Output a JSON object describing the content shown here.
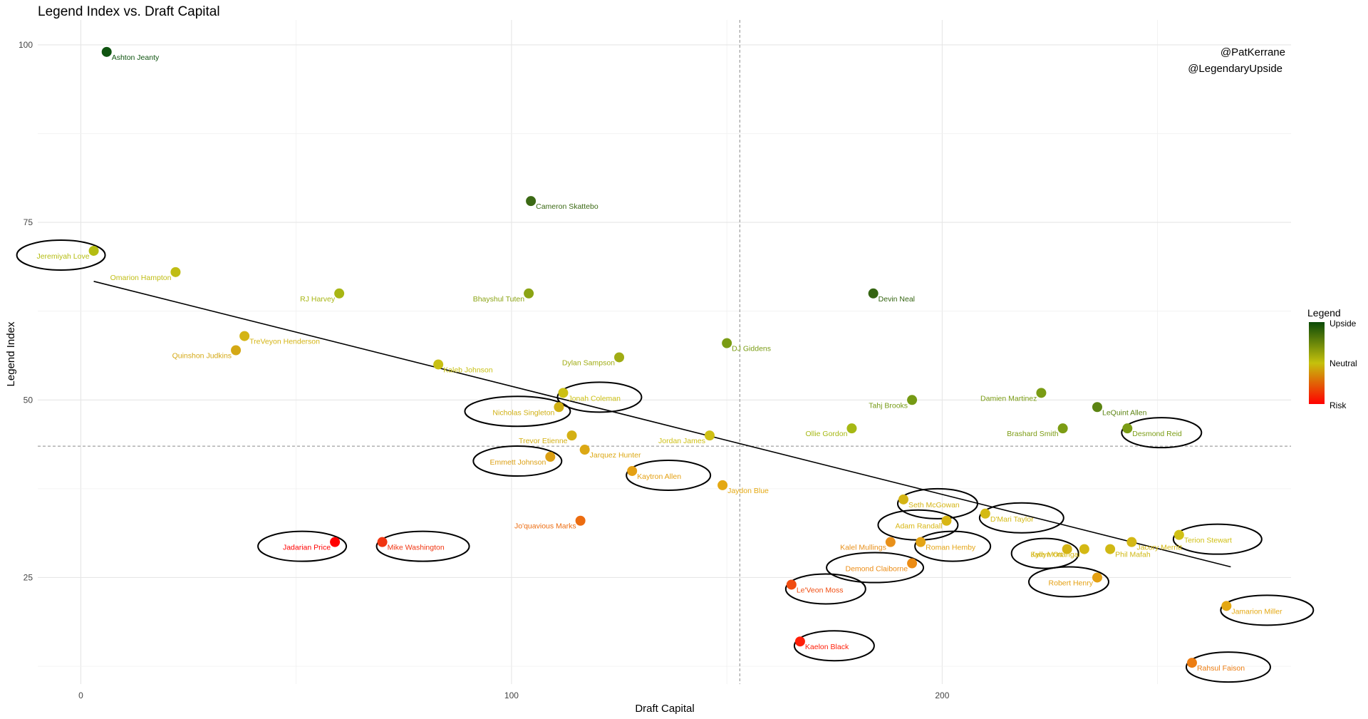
{
  "chart_data": {
    "type": "scatter",
    "title": "Legend Index vs. Draft Capital",
    "xlabel": "Draft Capital",
    "ylabel": "Legend Index",
    "xlim": [
      -10,
      281
    ],
    "ylim": [
      10,
      103.5
    ],
    "xticks": [
      0,
      100,
      200
    ],
    "yticks": [
      25,
      50,
      75,
      100
    ],
    "grid": true,
    "vline_x": 153,
    "hline_y": 43.5,
    "trend_line": {
      "x": [
        3,
        267
      ],
      "y": [
        66.7,
        26.5
      ]
    },
    "credits": [
      "@PatKerrane",
      "@LegendaryUpside"
    ],
    "legend": {
      "title": "Legend",
      "placement": "right",
      "labels": [
        "Upside",
        "Neutral",
        "Risk"
      ],
      "colors": [
        "#0b4a08",
        "#c5c10c",
        "#ff0000"
      ]
    },
    "points": [
      {
        "name": "Ashton Jeanty",
        "x": 6,
        "y": 99,
        "color": "#0f5410",
        "label_side": "right"
      },
      {
        "name": "Cameron Skattebo",
        "x": 104.5,
        "y": 78,
        "color": "#3b6914",
        "label_side": "right"
      },
      {
        "name": "Jeremiyah Love",
        "x": 3,
        "y": 71,
        "color": "#b5bd12",
        "label_side": "left",
        "circled": true
      },
      {
        "name": "Omarion Hampton",
        "x": 22,
        "y": 68,
        "color": "#c0bd14",
        "label_side": "left"
      },
      {
        "name": "RJ Harvey",
        "x": 60,
        "y": 65,
        "color": "#a8b614",
        "label_side": "left"
      },
      {
        "name": "Bhayshul Tuten",
        "x": 104,
        "y": 65,
        "color": "#8ba414",
        "label_side": "left"
      },
      {
        "name": "Devin Neal",
        "x": 184,
        "y": 65,
        "color": "#356512",
        "label_side": "right"
      },
      {
        "name": "TreVeyon Henderson",
        "x": 38,
        "y": 59,
        "color": "#d4b414",
        "label_side": "right"
      },
      {
        "name": "DJ Giddens",
        "x": 150,
        "y": 58,
        "color": "#7a9c14",
        "label_side": "right"
      },
      {
        "name": "Quinshon Judkins",
        "x": 36,
        "y": 57,
        "color": "#d4a814",
        "label_side": "left"
      },
      {
        "name": "Dylan Sampson",
        "x": 125,
        "y": 56,
        "color": "#a0ac14",
        "label_side": "left"
      },
      {
        "name": "Kaleb Johnson",
        "x": 83,
        "y": 55,
        "color": "#c8c014",
        "label_side": "right"
      },
      {
        "name": "Damien Martinez",
        "x": 223,
        "y": 51,
        "color": "#7a9c14",
        "label_side": "left"
      },
      {
        "name": "Jonah Coleman",
        "x": 112,
        "y": 51,
        "color": "#ccc014",
        "label_side": "right",
        "circled": true
      },
      {
        "name": "Tahj Brooks",
        "x": 193,
        "y": 50,
        "color": "#759a14",
        "label_side": "left"
      },
      {
        "name": "Nicholas Singleton",
        "x": 111,
        "y": 49,
        "color": "#d0b014",
        "label_side": "left",
        "circled": true
      },
      {
        "name": "LeQuint Allen",
        "x": 236,
        "y": 49,
        "color": "#5c8412",
        "label_side": "right"
      },
      {
        "name": "Ollie Gordon",
        "x": 179,
        "y": 46,
        "color": "#a6b814",
        "label_side": "left"
      },
      {
        "name": "Brashard Smith",
        "x": 228,
        "y": 46,
        "color": "#7c9c14",
        "label_side": "left"
      },
      {
        "name": "Desmond Reid",
        "x": 243,
        "y": 46,
        "color": "#7a9c14",
        "label_side": "right",
        "circled": true
      },
      {
        "name": "Trevor Etienne",
        "x": 114,
        "y": 45,
        "color": "#d4b014",
        "label_side": "left"
      },
      {
        "name": "Jordan James",
        "x": 146,
        "y": 45,
        "color": "#cfc014",
        "label_side": "left"
      },
      {
        "name": "Jarquez Hunter",
        "x": 117,
        "y": 43,
        "color": "#dca814",
        "label_side": "right"
      },
      {
        "name": "Emmett Johnson",
        "x": 109,
        "y": 42,
        "color": "#dca014",
        "label_side": "left",
        "circled": true
      },
      {
        "name": "Kaytron Allen",
        "x": 128,
        "y": 40,
        "color": "#e4a012",
        "label_side": "right",
        "circled": true
      },
      {
        "name": "Jaydon Blue",
        "x": 149,
        "y": 38,
        "color": "#e4a812",
        "label_side": "right"
      },
      {
        "name": "Seth McGowan",
        "x": 191,
        "y": 36,
        "color": "#d4b414",
        "label_side": "right",
        "circled": true
      },
      {
        "name": "D'Mari Taylor",
        "x": 210,
        "y": 34,
        "color": "#d4ba14",
        "label_side": "right",
        "circled": true
      },
      {
        "name": "Adam Randall",
        "x": 201,
        "y": 33,
        "color": "#d8b614",
        "label_side": "left",
        "circled": true
      },
      {
        "name": "Jo'quavious Marks",
        "x": 116,
        "y": 33,
        "color": "#ec6c10",
        "label_side": "left"
      },
      {
        "name": "Terion Stewart",
        "x": 255,
        "y": 31,
        "color": "#d0c014",
        "label_side": "right",
        "circled": true
      },
      {
        "name": "Jadarian Price",
        "x": 59,
        "y": 30,
        "color": "#ff0000",
        "label_side": "left",
        "circled": true
      },
      {
        "name": "Mike Washington",
        "x": 70,
        "y": 30,
        "color": "#f03410",
        "label_side": "right",
        "circled": true
      },
      {
        "name": "Kalel Mullings",
        "x": 188,
        "y": 30,
        "color": "#e8901a",
        "label_side": "left"
      },
      {
        "name": "Roman Hemby",
        "x": 195,
        "y": 30,
        "color": "#e4a414",
        "label_side": "right",
        "circled": true
      },
      {
        "name": "Jacory Merritt",
        "x": 244,
        "y": 30,
        "color": "#d4b814",
        "label_side": "right"
      },
      {
        "name": "Jadyn Ott",
        "x": 229,
        "y": 29,
        "color": "#d4b414",
        "label_side": "left",
        "circled": true
      },
      {
        "name": "Kyle Monangai",
        "x": 233,
        "y": 29,
        "color": "#d4b814",
        "label_side": "left"
      },
      {
        "name": "Phil Mafah",
        "x": 239,
        "y": 29,
        "color": "#d0b814",
        "label_side": "right"
      },
      {
        "name": "Demond Claiborne",
        "x": 193,
        "y": 27,
        "color": "#ec8c14",
        "label_side": "left",
        "circled": true
      },
      {
        "name": "Robert Henry",
        "x": 236,
        "y": 25,
        "color": "#e4a012",
        "label_side": "left",
        "circled": true
      },
      {
        "name": "Le'Veon Moss",
        "x": 165,
        "y": 24,
        "color": "#f04c10",
        "label_side": "right",
        "circled": true
      },
      {
        "name": "Jamarion Miller",
        "x": 266,
        "y": 21,
        "color": "#e4a812",
        "label_side": "right",
        "circled": true
      },
      {
        "name": "Kaelon Black",
        "x": 167,
        "y": 16,
        "color": "#ff1e08",
        "label_side": "right",
        "circled": true
      },
      {
        "name": "Rahsul Faison",
        "x": 258,
        "y": 13,
        "color": "#ec7c10",
        "label_side": "right",
        "circled": true
      }
    ]
  }
}
